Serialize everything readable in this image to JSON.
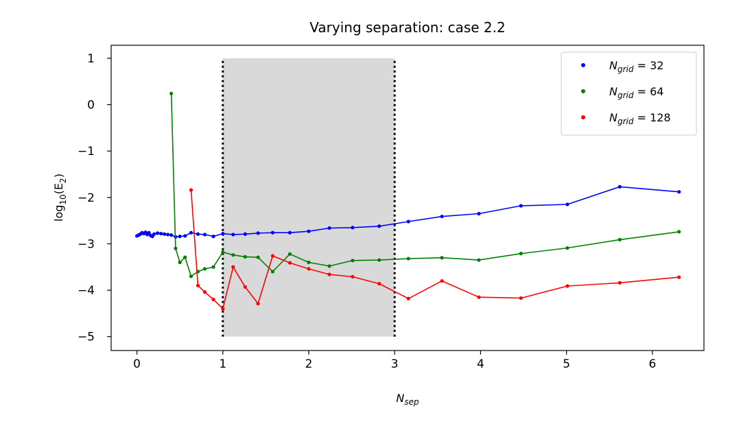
{
  "chart_data": {
    "type": "line",
    "title": "Varying separation: case 2.2",
    "xlabel": "N",
    "xlabel_sub": "sep",
    "ylabel": "log",
    "ylabel_sub": "10",
    "ylabel_tail": "(E",
    "ylabel_tail_sub": "2",
    "ylabel_close": ")",
    "xlim": [
      -0.3,
      6.6
    ],
    "ylim": [
      -5.3,
      1.28
    ],
    "xticks": [
      0,
      1,
      2,
      3,
      4,
      5,
      6
    ],
    "yticks": [
      1,
      0,
      -1,
      -2,
      -3,
      -4,
      -5
    ],
    "xtick_labels": [
      "0",
      "1",
      "2",
      "3",
      "4",
      "5",
      "6"
    ],
    "ytick_labels": [
      "1",
      "0",
      "−1",
      "−2",
      "−3",
      "−4",
      "−5"
    ],
    "legend_position": "top-right",
    "shaded_region": {
      "x": [
        1,
        3
      ],
      "y": [
        -5,
        1
      ],
      "color": "#d9d9d9"
    },
    "vertical_lines": [
      {
        "x": 1,
        "y": [
          -5,
          1
        ],
        "style": "dotted"
      },
      {
        "x": 3,
        "y": [
          -5,
          1
        ],
        "style": "dotted"
      }
    ],
    "series": [
      {
        "name_main": "N",
        "name_sub": "grid",
        "name_value": " = 32",
        "color": "#0000ff",
        "x": [
          0.0,
          0.02,
          0.04,
          0.06,
          0.08,
          0.1,
          0.12,
          0.14,
          0.16,
          0.18,
          0.2,
          0.24,
          0.28,
          0.32,
          0.36,
          0.4,
          0.45,
          0.5,
          0.56,
          0.63,
          0.71,
          0.79,
          0.89,
          1.0,
          1.12,
          1.26,
          1.41,
          1.58,
          1.78,
          2.0,
          2.24,
          2.51,
          2.82,
          3.16,
          3.55,
          3.98,
          4.47,
          5.01,
          5.62,
          6.31
        ],
        "y": [
          -2.83,
          -2.81,
          -2.79,
          -2.76,
          -2.78,
          -2.75,
          -2.8,
          -2.76,
          -2.82,
          -2.84,
          -2.79,
          -2.77,
          -2.78,
          -2.79,
          -2.8,
          -2.81,
          -2.85,
          -2.84,
          -2.83,
          -2.76,
          -2.79,
          -2.8,
          -2.84,
          -2.78,
          -2.8,
          -2.79,
          -2.77,
          -2.76,
          -2.76,
          -2.73,
          -2.66,
          -2.65,
          -2.62,
          -2.52,
          -2.41,
          -2.35,
          -2.18,
          -2.15,
          -1.77,
          -1.88
        ]
      },
      {
        "name_main": "N",
        "name_sub": "grid",
        "name_value": " = 64",
        "color": "#008000",
        "x": [
          0.4,
          0.45,
          0.5,
          0.56,
          0.63,
          0.71,
          0.79,
          0.89,
          1.0,
          1.12,
          1.26,
          1.41,
          1.58,
          1.78,
          2.0,
          2.24,
          2.51,
          2.82,
          3.16,
          3.55,
          3.98,
          4.47,
          5.01,
          5.62,
          6.31
        ],
        "y": [
          0.24,
          -3.1,
          -3.4,
          -3.29,
          -3.7,
          -3.6,
          -3.54,
          -3.5,
          -3.18,
          -3.24,
          -3.28,
          -3.29,
          -3.6,
          -3.22,
          -3.4,
          -3.48,
          -3.36,
          -3.35,
          -3.32,
          -3.3,
          -3.35,
          -3.21,
          -3.09,
          -2.91,
          -2.74
        ]
      },
      {
        "name_main": "N",
        "name_sub": "grid",
        "name_value": " = 128",
        "color": "#ff0000",
        "x": [
          0.63,
          0.71,
          0.79,
          0.89,
          1.0,
          1.12,
          1.26,
          1.41,
          1.58,
          1.78,
          2.0,
          2.24,
          2.51,
          2.82,
          3.16,
          3.55,
          3.98,
          4.47,
          5.01,
          5.62,
          6.31
        ],
        "y": [
          -1.84,
          -3.9,
          -4.04,
          -4.2,
          -4.4,
          -3.5,
          -3.93,
          -4.29,
          -3.26,
          -3.41,
          -3.54,
          -3.66,
          -3.71,
          -3.86,
          -4.18,
          -3.8,
          -4.15,
          -4.17,
          -3.91,
          -3.84,
          -3.72
        ]
      }
    ]
  }
}
